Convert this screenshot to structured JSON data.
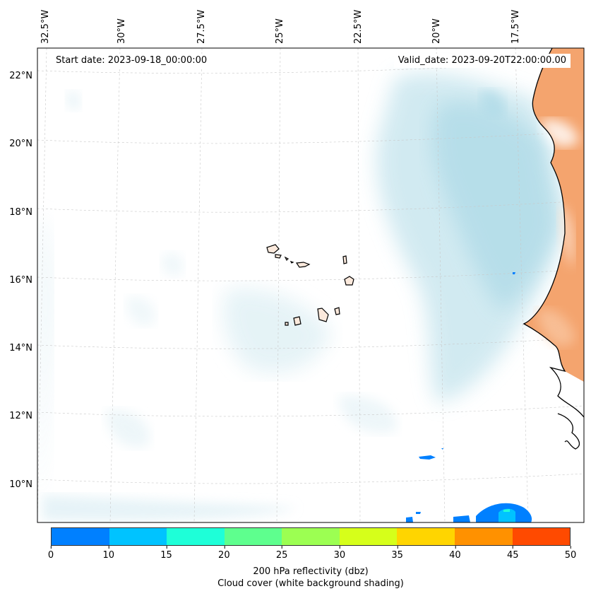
{
  "map": {
    "start_date": "Start date: 2023-09-18_00:00:00",
    "valid_date": "Valid_date: 2023-09-20T22:00:00.00",
    "lon_labels": [
      "32.5°W",
      "30°W",
      "27.5°W",
      "25°W",
      "22.5°W",
      "20°W",
      "17.5°W"
    ],
    "lat_labels": [
      "22°N",
      "20°N",
      "18°N",
      "16°N",
      "14°N",
      "12°N",
      "10°N"
    ]
  },
  "colorbar": {
    "label": "200 hPa reflectivity (dbz)",
    "sublabel": "Cloud cover (white background shading)",
    "ticks": [
      "0",
      "10",
      "15",
      "20",
      "25",
      "30",
      "35",
      "40",
      "45",
      "50"
    ],
    "colors": [
      "#0080ff",
      "#00c3ff",
      "#1effd8",
      "#5eff8e",
      "#9cff52",
      "#d6ff1a",
      "#ffd500",
      "#ff9100",
      "#ff4a00"
    ]
  },
  "colors": {
    "cloud": "#a9d8e6",
    "land_warm": "#f4a46e",
    "reflectivity": "#0080ff"
  }
}
